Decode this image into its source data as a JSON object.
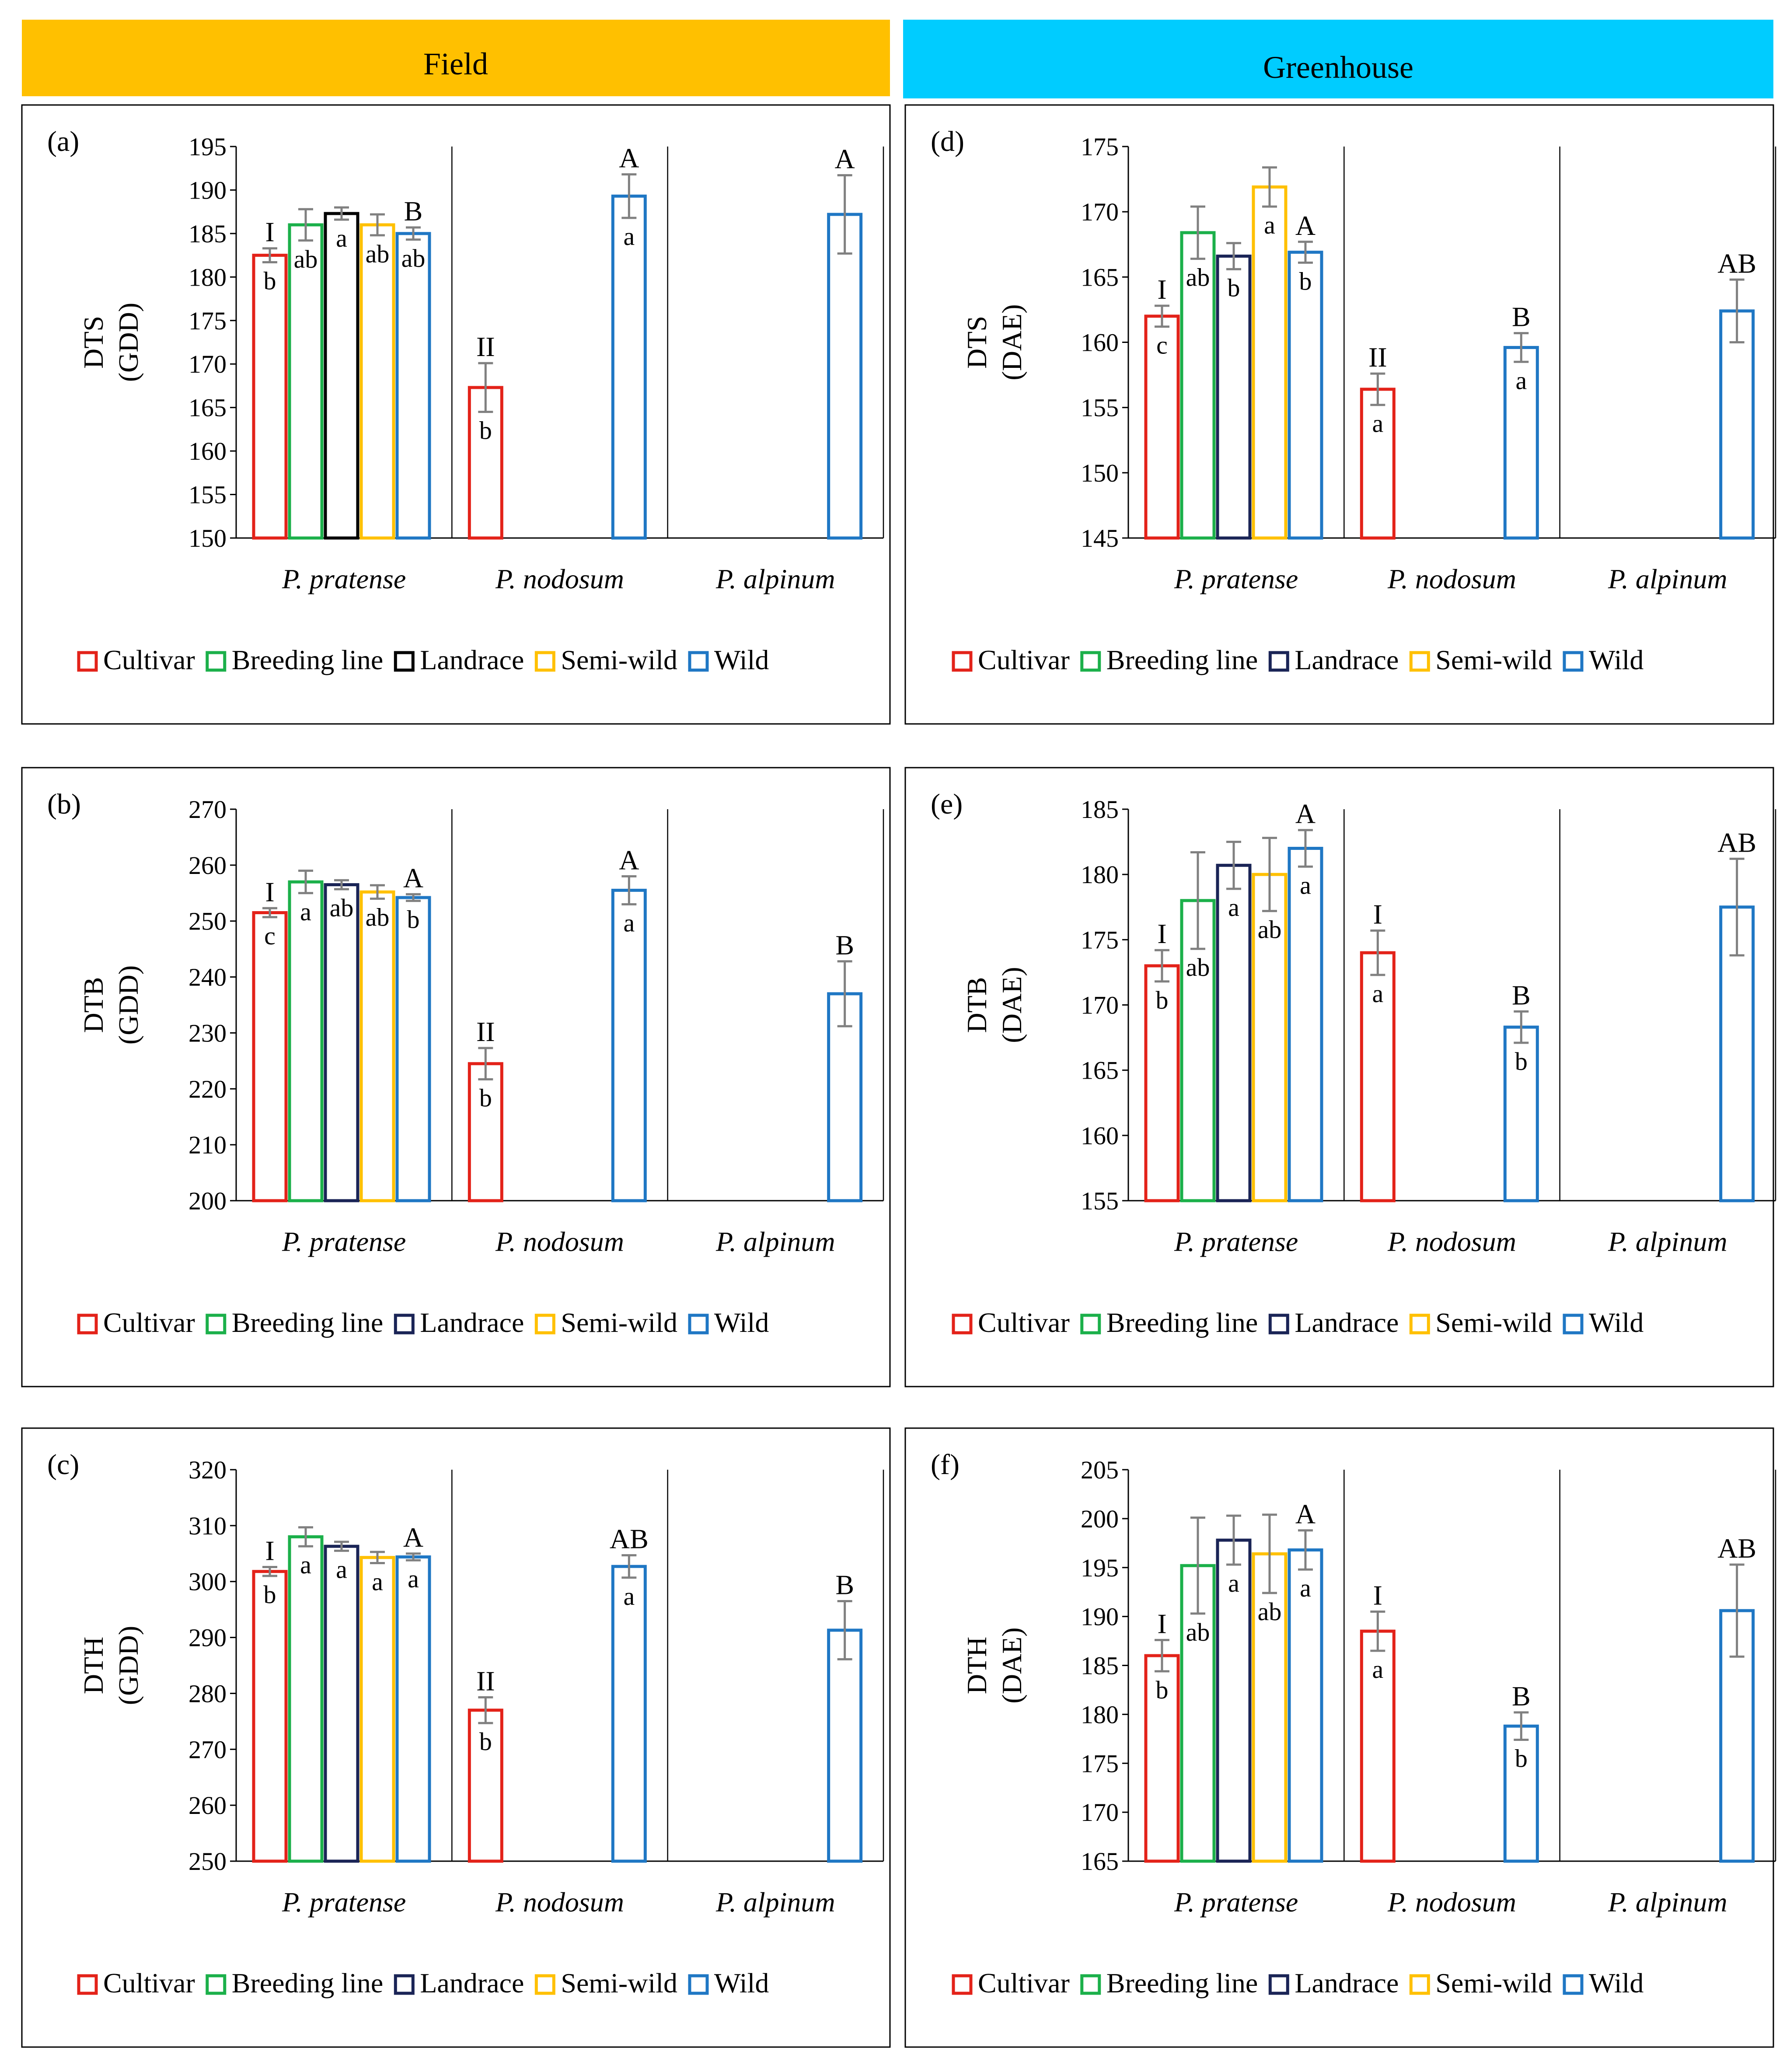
{
  "headers": {
    "field": "Field",
    "greenhouse": "Greenhouse",
    "field_color": "#FFC000",
    "greenhouse_color": "#00CCFF"
  },
  "legend": [
    {
      "label": "Cultivar",
      "color": "#E32219"
    },
    {
      "label": "Breeding line",
      "color": "#1BB04A"
    },
    {
      "label": "Landrace",
      "color": "#000000"
    },
    {
      "label": "Semi-wild",
      "color": "#FFC000"
    },
    {
      "label": "Wild",
      "color": "#1F77C4"
    }
  ],
  "legend_navy": "#1A2456",
  "species": [
    "P. pratense",
    "P. nodosum",
    "P. alpinum"
  ],
  "error_bar_color": "#808080",
  "chart_data": [
    {
      "id": "a",
      "panel_label": "(a)",
      "type": "bar",
      "ylabel": [
        "DTS",
        "(GDD)"
      ],
      "ylim": [
        150,
        195
      ],
      "yticks": [
        150,
        155,
        160,
        165,
        170,
        175,
        180,
        185,
        190,
        195
      ],
      "categories": [
        "P. pratense",
        "P. nodosum",
        "P. alpinum"
      ],
      "landrace_color": "#000000",
      "bars": [
        {
          "group": "P. pratense",
          "series": "Cultivar",
          "value": 182.5,
          "err": 0.8,
          "lower": "b",
          "upper": "I"
        },
        {
          "group": "P. pratense",
          "series": "Breeding line",
          "value": 186,
          "err": 1.8,
          "lower": "ab"
        },
        {
          "group": "P. pratense",
          "series": "Landrace",
          "value": 187.3,
          "err": 0.7,
          "lower": "a"
        },
        {
          "group": "P. pratense",
          "series": "Semi-wild",
          "value": 186,
          "err": 1.2,
          "lower": "ab"
        },
        {
          "group": "P. pratense",
          "series": "Wild",
          "value": 185,
          "err": 0.7,
          "lower": "ab",
          "upper": "B"
        },
        {
          "group": "P. nodosum",
          "series": "Cultivar",
          "value": 167.3,
          "err": 2.8,
          "lower": "b",
          "upper": "II"
        },
        {
          "group": "P. nodosum",
          "series": "Wild",
          "value": 189.3,
          "err": 2.5,
          "lower": "a",
          "upper": "A"
        },
        {
          "group": "P. alpinum",
          "series": "Wild",
          "value": 187.2,
          "err": 4.5,
          "upper": "A"
        }
      ]
    },
    {
      "id": "b",
      "panel_label": "(b)",
      "type": "bar",
      "ylabel": [
        "DTB",
        "(GDD)"
      ],
      "ylim": [
        200,
        270
      ],
      "yticks": [
        200,
        210,
        220,
        230,
        240,
        250,
        260,
        270
      ],
      "categories": [
        "P. pratense",
        "P. nodosum",
        "P. alpinum"
      ],
      "landrace_color": "#1A2456",
      "bars": [
        {
          "group": "P. pratense",
          "series": "Cultivar",
          "value": 251.5,
          "err": 0.8,
          "lower": "c",
          "upper": "I"
        },
        {
          "group": "P. pratense",
          "series": "Breeding line",
          "value": 257,
          "err": 2,
          "lower": "a"
        },
        {
          "group": "P. pratense",
          "series": "Landrace",
          "value": 256.5,
          "err": 0.8,
          "lower": "ab"
        },
        {
          "group": "P. pratense",
          "series": "Semi-wild",
          "value": 255.2,
          "err": 1.2,
          "lower": "ab"
        },
        {
          "group": "P. pratense",
          "series": "Wild",
          "value": 254.2,
          "err": 0.6,
          "lower": "b",
          "upper": "A"
        },
        {
          "group": "P. nodosum",
          "series": "Cultivar",
          "value": 224.5,
          "err": 2.8,
          "lower": "b",
          "upper": "II"
        },
        {
          "group": "P. nodosum",
          "series": "Wild",
          "value": 255.5,
          "err": 2.5,
          "lower": "a",
          "upper": "A"
        },
        {
          "group": "P. alpinum",
          "series": "Wild",
          "value": 237,
          "err": 5.8,
          "upper": "B"
        }
      ]
    },
    {
      "id": "c",
      "panel_label": "(c)",
      "type": "bar",
      "ylabel": [
        "DTH",
        "(GDD)"
      ],
      "ylim": [
        250,
        320
      ],
      "yticks": [
        250,
        260,
        270,
        280,
        290,
        300,
        310,
        320
      ],
      "categories": [
        "P. pratense",
        "P. nodosum",
        "P. alpinum"
      ],
      "landrace_color": "#1A2456",
      "bars": [
        {
          "group": "P. pratense",
          "series": "Cultivar",
          "value": 301.8,
          "err": 0.8,
          "lower": "b",
          "upper": "I"
        },
        {
          "group": "P. pratense",
          "series": "Breeding line",
          "value": 308,
          "err": 1.7,
          "lower": "a"
        },
        {
          "group": "P. pratense",
          "series": "Landrace",
          "value": 306.3,
          "err": 0.8,
          "lower": "a"
        },
        {
          "group": "P. pratense",
          "series": "Semi-wild",
          "value": 304.3,
          "err": 1,
          "lower": "a"
        },
        {
          "group": "P. pratense",
          "series": "Wild",
          "value": 304.4,
          "err": 0.6,
          "lower": "a",
          "upper": "A"
        },
        {
          "group": "P. nodosum",
          "series": "Cultivar",
          "value": 277,
          "err": 2.3,
          "lower": "b",
          "upper": "II"
        },
        {
          "group": "P. nodosum",
          "series": "Wild",
          "value": 302.7,
          "err": 2,
          "lower": "a",
          "upper": "AB"
        },
        {
          "group": "P. alpinum",
          "series": "Wild",
          "value": 291.3,
          "err": 5.2,
          "upper": "B"
        }
      ]
    },
    {
      "id": "d",
      "panel_label": "(d)",
      "type": "bar",
      "ylabel": [
        "DTS",
        "(DAE)"
      ],
      "ylim": [
        145,
        175
      ],
      "yticks": [
        145,
        150,
        155,
        160,
        165,
        170,
        175
      ],
      "categories": [
        "P. pratense",
        "P. nodosum",
        "P. alpinum"
      ],
      "landrace_color": "#1A2456",
      "bars": [
        {
          "group": "P. pratense",
          "series": "Cultivar",
          "value": 162,
          "err": 0.8,
          "lower": "c",
          "upper": "I"
        },
        {
          "group": "P. pratense",
          "series": "Breeding line",
          "value": 168.4,
          "err": 2,
          "lower": "ab"
        },
        {
          "group": "P. pratense",
          "series": "Landrace",
          "value": 166.6,
          "err": 1,
          "lower": "b"
        },
        {
          "group": "P. pratense",
          "series": "Semi-wild",
          "value": 171.9,
          "err": 1.5,
          "lower": "a"
        },
        {
          "group": "P. pratense",
          "series": "Wild",
          "value": 166.9,
          "err": 0.8,
          "lower": "b",
          "upper": "A"
        },
        {
          "group": "P. nodosum",
          "series": "Cultivar",
          "value": 156.4,
          "err": 1.2,
          "lower": "a",
          "upper": "II"
        },
        {
          "group": "P. nodosum",
          "series": "Wild",
          "value": 159.6,
          "err": 1.1,
          "lower": "a",
          "upper": "B"
        },
        {
          "group": "P. alpinum",
          "series": "Wild",
          "value": 162.4,
          "err": 2.4,
          "upper": "AB"
        }
      ]
    },
    {
      "id": "e",
      "panel_label": "(e)",
      "type": "bar",
      "ylabel": [
        "DTB",
        "(DAE)"
      ],
      "ylim": [
        155,
        185
      ],
      "yticks": [
        155,
        160,
        165,
        170,
        175,
        180,
        185
      ],
      "categories": [
        "P. pratense",
        "P. nodosum",
        "P. alpinum"
      ],
      "landrace_color": "#1A2456",
      "bars": [
        {
          "group": "P. pratense",
          "series": "Cultivar",
          "value": 173,
          "err": 1.2,
          "lower": "b",
          "upper": "I"
        },
        {
          "group": "P. pratense",
          "series": "Breeding line",
          "value": 178,
          "err": 3.7,
          "lower": "ab"
        },
        {
          "group": "P. pratense",
          "series": "Landrace",
          "value": 180.7,
          "err": 1.8,
          "lower": "a"
        },
        {
          "group": "P. pratense",
          "series": "Semi-wild",
          "value": 180,
          "err": 2.8,
          "lower": "ab"
        },
        {
          "group": "P. pratense",
          "series": "Wild",
          "value": 182,
          "err": 1.4,
          "lower": "a",
          "upper": "A"
        },
        {
          "group": "P. nodosum",
          "series": "Cultivar",
          "value": 174,
          "err": 1.7,
          "lower": "a",
          "upper": "I"
        },
        {
          "group": "P. nodosum",
          "series": "Wild",
          "value": 168.3,
          "err": 1.2,
          "lower": "b",
          "upper": "B"
        },
        {
          "group": "P. alpinum",
          "series": "Wild",
          "value": 177.5,
          "err": 3.7,
          "upper": "AB"
        }
      ]
    },
    {
      "id": "f",
      "panel_label": "(f)",
      "type": "bar",
      "ylabel": [
        "DTH",
        "(DAE)"
      ],
      "ylim": [
        165,
        205
      ],
      "yticks": [
        165,
        170,
        175,
        180,
        185,
        190,
        195,
        200,
        205
      ],
      "categories": [
        "P. pratense",
        "P. nodosum",
        "P. alpinum"
      ],
      "landrace_color": "#1A2456",
      "bars": [
        {
          "group": "P. pratense",
          "series": "Cultivar",
          "value": 186,
          "err": 1.6,
          "lower": "b",
          "upper": "I"
        },
        {
          "group": "P. pratense",
          "series": "Breeding line",
          "value": 195.2,
          "err": 4.9,
          "lower": "ab"
        },
        {
          "group": "P. pratense",
          "series": "Landrace",
          "value": 197.8,
          "err": 2.5,
          "lower": "a"
        },
        {
          "group": "P. pratense",
          "series": "Semi-wild",
          "value": 196.4,
          "err": 4,
          "lower": "ab"
        },
        {
          "group": "P. pratense",
          "series": "Wild",
          "value": 196.8,
          "err": 2,
          "lower": "a",
          "upper": "A"
        },
        {
          "group": "P. nodosum",
          "series": "Cultivar",
          "value": 188.5,
          "err": 2,
          "lower": "a",
          "upper": "I"
        },
        {
          "group": "P. nodosum",
          "series": "Wild",
          "value": 178.8,
          "err": 1.4,
          "lower": "b",
          "upper": "B"
        },
        {
          "group": "P. alpinum",
          "series": "Wild",
          "value": 190.6,
          "err": 4.7,
          "upper": "AB"
        }
      ]
    }
  ]
}
